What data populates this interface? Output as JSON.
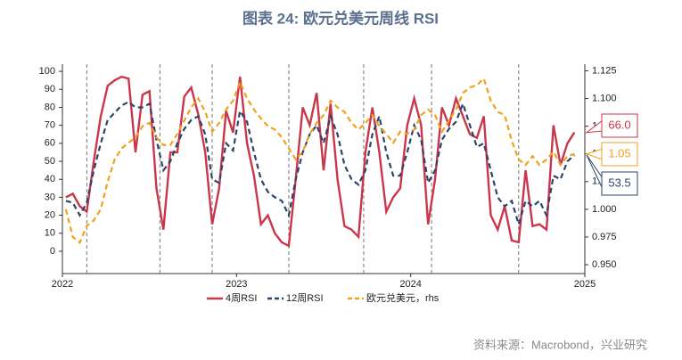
{
  "chart_data": {
    "type": "line",
    "title": "图表 24: 欧元兑美元周线 RSI",
    "source": "资料来源：Macrobond，兴业研究",
    "x": [
      2022.02,
      2022.06,
      2022.1,
      2022.14,
      2022.18,
      2022.22,
      2022.26,
      2022.3,
      2022.34,
      2022.38,
      2022.42,
      2022.46,
      2022.5,
      2022.54,
      2022.58,
      2022.62,
      2022.66,
      2022.7,
      2022.74,
      2022.78,
      2022.82,
      2022.86,
      2022.9,
      2022.94,
      2022.98,
      2023.02,
      2023.06,
      2023.1,
      2023.14,
      2023.18,
      2023.22,
      2023.26,
      2023.3,
      2023.34,
      2023.38,
      2023.42,
      2023.46,
      2023.5,
      2023.54,
      2023.58,
      2023.62,
      2023.66,
      2023.7,
      2023.74,
      2023.78,
      2023.82,
      2023.86,
      2023.9,
      2023.94,
      2023.98,
      2024.02,
      2024.06,
      2024.1,
      2024.14,
      2024.18,
      2024.22,
      2024.26,
      2024.3,
      2024.34,
      2024.38,
      2024.42,
      2024.46,
      2024.5,
      2024.54,
      2024.58,
      2024.62,
      2024.66,
      2024.7,
      2024.74,
      2024.78,
      2024.82,
      2024.86,
      2024.9,
      2024.94
    ],
    "xlim": [
      2022,
      2025
    ],
    "xticks": [
      2022,
      2023,
      2024,
      2025
    ],
    "vlines": [
      2022.14,
      2022.56,
      2022.86,
      2023.3,
      2023.73,
      2024.12,
      2024.62
    ],
    "ylim": [
      -12.4,
      104
    ],
    "yticks": [
      0,
      10,
      20,
      30,
      40,
      50,
      60,
      70,
      80,
      90,
      100
    ],
    "y2lim": [
      0.942,
      1.131
    ],
    "y2ticks": [
      {
        "value": 0.95,
        "label": "0.950"
      },
      {
        "value": 0.975,
        "label": "0.975"
      },
      {
        "value": 1,
        "label": "1.000"
      },
      {
        "value": 1.025,
        "label": "1.025"
      },
      {
        "value": 1.05,
        "label": "1.050"
      },
      {
        "value": 1.075,
        "label": "1.075"
      },
      {
        "value": 1.1,
        "label": "1.100"
      },
      {
        "value": 1.125,
        "label": "1.125"
      }
    ],
    "series": [
      {
        "name": "4周RSI",
        "color": "#c8374b",
        "dash": false,
        "last_label": "66.0",
        "values": [
          30,
          32,
          25,
          22,
          50,
          75,
          92,
          95,
          97,
          96,
          55,
          87,
          89,
          35,
          12,
          55,
          55,
          86,
          91,
          76,
          55,
          15,
          35,
          78,
          66,
          97,
          60,
          42,
          15,
          20,
          10,
          5,
          3,
          40,
          80,
          70,
          88,
          45,
          82,
          40,
          14,
          12,
          8,
          55,
          80,
          55,
          22,
          30,
          35,
          70,
          85,
          70,
          15,
          40,
          80,
          70,
          85,
          75,
          65,
          63,
          75,
          20,
          12,
          25,
          6,
          5,
          45,
          14,
          15,
          12,
          70,
          48,
          60,
          66
        ]
      },
      {
        "name": "12周RSI",
        "color": "#2e4468",
        "dash": true,
        "last_label": "53.5",
        "values": [
          28,
          27,
          20,
          27,
          45,
          60,
          73,
          77,
          81,
          83,
          80,
          80,
          82,
          62,
          45,
          50,
          60,
          68,
          73,
          75,
          65,
          40,
          38,
          60,
          56,
          78,
          72,
          55,
          40,
          33,
          30,
          28,
          20,
          40,
          55,
          65,
          70,
          60,
          75,
          65,
          48,
          40,
          37,
          45,
          65,
          75,
          55,
          42,
          42,
          55,
          70,
          62,
          38,
          45,
          62,
          68,
          72,
          82,
          70,
          58,
          60,
          45,
          30,
          25,
          28,
          15,
          28,
          25,
          28,
          20,
          42,
          40,
          50,
          53.5
        ]
      },
      {
        "name": "欧元兑美元，rhs",
        "color": "#f0a21f",
        "dash": true,
        "axis": "y2",
        "last_label": "1.05",
        "values": [
          1.0,
          0.975,
          0.97,
          0.985,
          0.99,
          1.0,
          1.025,
          1.045,
          1.055,
          1.06,
          1.065,
          1.075,
          1.078,
          1.065,
          1.058,
          1.058,
          1.068,
          1.08,
          1.092,
          1.1,
          1.088,
          1.07,
          1.078,
          1.09,
          1.098,
          1.115,
          1.1,
          1.09,
          1.082,
          1.075,
          1.072,
          1.065,
          1.055,
          1.045,
          1.052,
          1.068,
          1.078,
          1.085,
          1.098,
          1.092,
          1.088,
          1.078,
          1.072,
          1.078,
          1.085,
          1.075,
          1.068,
          1.06,
          1.07,
          1.068,
          1.072,
          1.085,
          1.09,
          1.085,
          1.07,
          1.08,
          1.09,
          1.105,
          1.11,
          1.112,
          1.118,
          1.098,
          1.088,
          1.085,
          1.062,
          1.045,
          1.04,
          1.048,
          1.04,
          1.045,
          1.052,
          1.04,
          1.048,
          1.05
        ]
      }
    ]
  }
}
